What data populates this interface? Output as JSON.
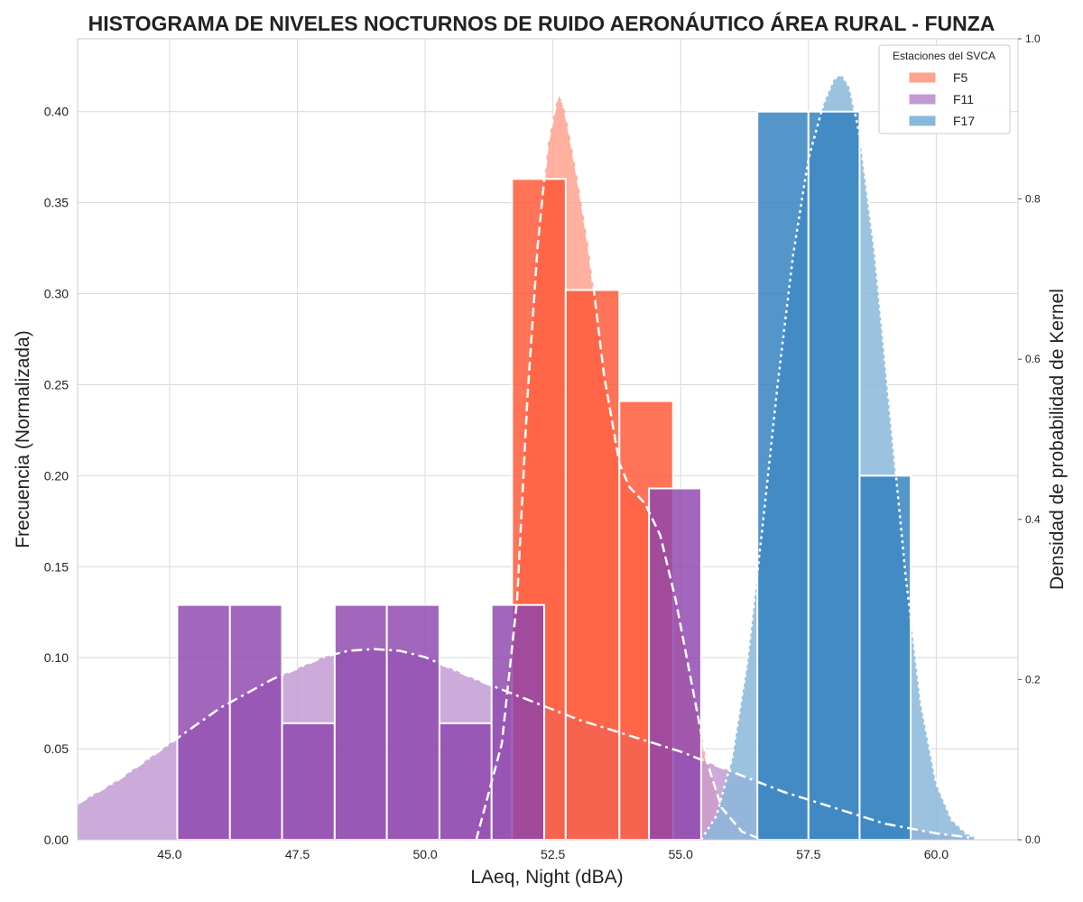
{
  "chart_data": {
    "type": "bar",
    "title": "HISTOGRAMA DE NIVELES NOCTURNOS DE RUIDO AERONÁUTICO ÁREA RURAL - FUNZA",
    "xlabel": "LAeq, Night (dBA)",
    "ylabel": "Frecuencia (Normalizada)",
    "y2label": "Densidad de probabilidad de Kernel",
    "xlim": [
      43.2,
      61.6
    ],
    "ylim": [
      0,
      0.44
    ],
    "y2lim": [
      0,
      1.0
    ],
    "xticks": [
      "45.0",
      "47.5",
      "50.0",
      "52.5",
      "55.0",
      "57.5",
      "60.0"
    ],
    "yticks": [
      "0.00",
      "0.05",
      "0.10",
      "0.15",
      "0.20",
      "0.25",
      "0.30",
      "0.35",
      "0.40"
    ],
    "y2ticks": [
      "0.0",
      "0.2",
      "0.4",
      "0.6",
      "0.8",
      "1.0"
    ],
    "grid": true,
    "legend": {
      "title": "Estaciones del SVCA",
      "position": "top-right"
    },
    "series": [
      {
        "name": "F5",
        "color": "#ff5533",
        "kde_color": "#ffa28f",
        "kde_line": "dashed",
        "bins": [
          {
            "x0": 51.7,
            "x1": 52.75,
            "value": 0.363
          },
          {
            "x0": 52.75,
            "x1": 53.8,
            "value": 0.302
          },
          {
            "x0": 53.8,
            "x1": 54.85,
            "value": 0.241
          }
        ],
        "kde": {
          "x": [
            51.0,
            51.5,
            51.8,
            52.0,
            52.2,
            52.4,
            52.6,
            52.7,
            52.8,
            53.0,
            53.2,
            53.5,
            53.8,
            54.0,
            54.3,
            54.6,
            54.9,
            55.2,
            55.5,
            55.8,
            56.2,
            56.6
          ],
          "y": [
            0.0,
            0.12,
            0.3,
            0.55,
            0.74,
            0.87,
            0.93,
            0.92,
            0.89,
            0.82,
            0.74,
            0.58,
            0.47,
            0.44,
            0.42,
            0.38,
            0.3,
            0.2,
            0.1,
            0.04,
            0.01,
            0.0
          ]
        }
      },
      {
        "name": "F11",
        "color": "#8e44ad",
        "kde_color": "#c39bd3",
        "kde_line": "dashdot",
        "bins": [
          {
            "x0": 45.15,
            "x1": 46.18,
            "value": 0.129
          },
          {
            "x0": 46.18,
            "x1": 47.2,
            "value": 0.129
          },
          {
            "x0": 47.2,
            "x1": 48.23,
            "value": 0.064
          },
          {
            "x0": 48.23,
            "x1": 49.25,
            "value": 0.129
          },
          {
            "x0": 49.25,
            "x1": 50.28,
            "value": 0.129
          },
          {
            "x0": 50.28,
            "x1": 51.3,
            "value": 0.064
          },
          {
            "x0": 51.3,
            "x1": 52.33,
            "value": 0.129
          },
          {
            "x0": 54.38,
            "x1": 55.4,
            "value": 0.193
          }
        ],
        "kde": {
          "x": [
            43.2,
            44.0,
            45.0,
            46.0,
            47.0,
            48.0,
            48.5,
            49.0,
            49.5,
            50.0,
            51.0,
            52.0,
            53.0,
            54.0,
            55.0,
            56.0,
            57.0,
            58.0,
            59.0,
            60.0,
            61.0
          ],
          "y": [
            0.045,
            0.075,
            0.12,
            0.165,
            0.2,
            0.228,
            0.236,
            0.238,
            0.236,
            0.228,
            0.2,
            0.175,
            0.15,
            0.13,
            0.11,
            0.085,
            0.06,
            0.04,
            0.02,
            0.008,
            0.0
          ]
        }
      },
      {
        "name": "F17",
        "color": "#2e7fbe",
        "kde_color": "#89b9da",
        "kde_line": "dotted",
        "bins": [
          {
            "x0": 56.5,
            "x1": 57.5,
            "value": 0.4
          },
          {
            "x0": 57.5,
            "x1": 58.5,
            "value": 0.4
          },
          {
            "x0": 58.5,
            "x1": 59.5,
            "value": 0.2
          }
        ],
        "kde": {
          "x": [
            55.4,
            55.7,
            56.0,
            56.3,
            56.6,
            56.9,
            57.2,
            57.5,
            57.8,
            58.0,
            58.15,
            58.3,
            58.5,
            58.8,
            59.1,
            59.4,
            59.7,
            60.0,
            60.3,
            60.6,
            60.9
          ],
          "y": [
            0.0,
            0.03,
            0.1,
            0.22,
            0.39,
            0.57,
            0.73,
            0.85,
            0.92,
            0.95,
            0.955,
            0.94,
            0.88,
            0.73,
            0.53,
            0.33,
            0.17,
            0.07,
            0.025,
            0.007,
            0.0
          ]
        }
      }
    ]
  }
}
